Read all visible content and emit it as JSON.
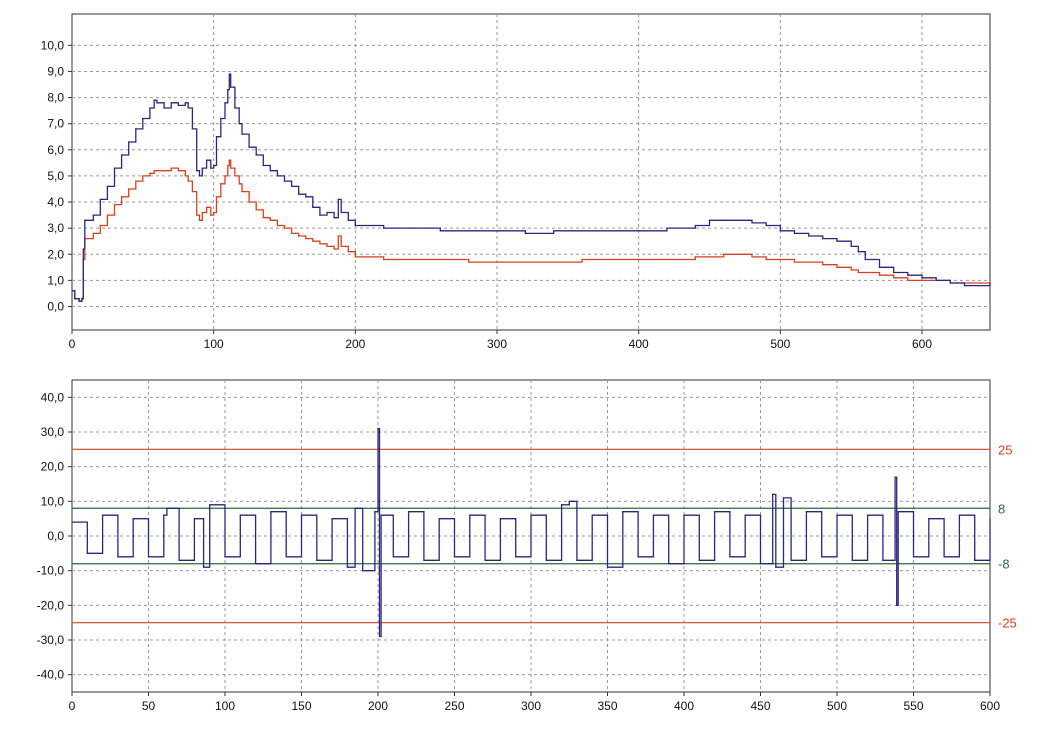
{
  "chart_data": [
    {
      "type": "line",
      "title": "",
      "xlabel": "",
      "ylabel": "",
      "xlim": [
        0,
        648
      ],
      "ylim": [
        -0.9,
        11.2
      ],
      "grid": true,
      "x_ticks": [
        0,
        100,
        200,
        300,
        400,
        500,
        600
      ],
      "x_tick_labels": [
        "0",
        "100",
        "200",
        "300",
        "400",
        "500",
        "600"
      ],
      "y_ticks": [
        0,
        1,
        2,
        3,
        4,
        5,
        6,
        7,
        8,
        9,
        10
      ],
      "y_tick_labels": [
        "0,0",
        "1,0",
        "2,0",
        "3,0",
        "4,0",
        "5,0",
        "6,0",
        "7,0",
        "8,0",
        "9,0",
        "10,0"
      ],
      "colors": {
        "series_1": "#2b2680",
        "series_2": "#d9411e",
        "grid": "#9a9a9a"
      },
      "series": [
        {
          "x": [
            0,
            2,
            5,
            7,
            8,
            9,
            10,
            15,
            20,
            25,
            30,
            35,
            40,
            45,
            50,
            55,
            58,
            60,
            65,
            70,
            75,
            80,
            82,
            85,
            88,
            90,
            92,
            95,
            98,
            100,
            102,
            105,
            108,
            110,
            111,
            112,
            115,
            118,
            120,
            125,
            130,
            135,
            140,
            145,
            150,
            155,
            160,
            165,
            170,
            175,
            180,
            185,
            188,
            190,
            195,
            200,
            210,
            220,
            230,
            240,
            250,
            260,
            280,
            300,
            320,
            340,
            360,
            380,
            400,
            420,
            440,
            450,
            460,
            470,
            480,
            490,
            500,
            510,
            520,
            530,
            540,
            550,
            555,
            560,
            570,
            580,
            590,
            600,
            610,
            620,
            630,
            640,
            648
          ],
          "values": [
            0.6,
            0.3,
            0.2,
            0.3,
            2.2,
            3.3,
            3.3,
            3.5,
            4.1,
            4.6,
            5.3,
            5.8,
            6.3,
            6.8,
            7.2,
            7.6,
            7.9,
            7.8,
            7.6,
            7.8,
            7.7,
            7.8,
            7.6,
            6.8,
            5.2,
            5.0,
            5.3,
            5.6,
            5.3,
            5.4,
            6.5,
            7.2,
            7.8,
            8.3,
            8.9,
            8.4,
            7.6,
            7.0,
            6.6,
            6.1,
            5.8,
            5.4,
            5.2,
            5.0,
            4.8,
            4.6,
            4.3,
            4.2,
            3.8,
            3.5,
            3.6,
            3.4,
            4.1,
            3.6,
            3.3,
            3.1,
            3.1,
            3.0,
            3.0,
            3.0,
            3.0,
            2.9,
            2.9,
            2.9,
            2.8,
            2.9,
            2.9,
            2.9,
            2.9,
            3.0,
            3.1,
            3.3,
            3.3,
            3.3,
            3.2,
            3.1,
            2.9,
            2.8,
            2.7,
            2.6,
            2.5,
            2.3,
            2.1,
            1.8,
            1.5,
            1.3,
            1.2,
            1.1,
            1.0,
            0.9,
            0.8,
            0.8,
            0.9
          ]
        },
        {
          "x": [
            0,
            2,
            5,
            7,
            8,
            9,
            10,
            15,
            20,
            25,
            30,
            35,
            40,
            45,
            50,
            55,
            58,
            60,
            65,
            70,
            75,
            80,
            82,
            85,
            88,
            90,
            92,
            95,
            98,
            100,
            102,
            105,
            108,
            110,
            111,
            112,
            115,
            118,
            120,
            125,
            130,
            135,
            140,
            145,
            150,
            155,
            160,
            165,
            170,
            175,
            180,
            185,
            188,
            190,
            195,
            200,
            210,
            220,
            230,
            240,
            250,
            260,
            280,
            300,
            320,
            340,
            360,
            380,
            400,
            420,
            440,
            450,
            460,
            470,
            480,
            490,
            500,
            510,
            520,
            530,
            540,
            550,
            555,
            560,
            570,
            580,
            590,
            600,
            610,
            620,
            630,
            640,
            648
          ],
          "values": [
            0.6,
            0.3,
            0.2,
            0.3,
            1.8,
            2.6,
            2.6,
            2.8,
            3.1,
            3.5,
            3.9,
            4.2,
            4.5,
            4.8,
            5.0,
            5.1,
            5.2,
            5.2,
            5.2,
            5.3,
            5.2,
            5.0,
            4.8,
            4.4,
            3.5,
            3.3,
            3.6,
            3.8,
            3.5,
            3.6,
            4.2,
            4.7,
            5.0,
            5.4,
            5.6,
            5.3,
            5.0,
            4.7,
            4.4,
            4.0,
            3.7,
            3.4,
            3.3,
            3.1,
            3.0,
            2.8,
            2.7,
            2.6,
            2.5,
            2.4,
            2.3,
            2.2,
            2.7,
            2.3,
            2.1,
            1.9,
            1.9,
            1.8,
            1.8,
            1.8,
            1.8,
            1.8,
            1.7,
            1.7,
            1.7,
            1.7,
            1.8,
            1.8,
            1.8,
            1.8,
            1.9,
            1.9,
            2.0,
            2.0,
            1.9,
            1.8,
            1.8,
            1.7,
            1.7,
            1.6,
            1.5,
            1.4,
            1.3,
            1.3,
            1.2,
            1.1,
            1.0,
            1.0,
            1.0,
            0.9,
            0.9,
            0.9,
            0.9
          ]
        }
      ]
    },
    {
      "type": "line",
      "title": "",
      "xlabel": "",
      "ylabel": "",
      "xlim": [
        0,
        600
      ],
      "ylim": [
        -45,
        45
      ],
      "grid": true,
      "x_ticks": [
        0,
        50,
        100,
        150,
        200,
        250,
        300,
        350,
        400,
        450,
        500,
        550,
        600
      ],
      "x_tick_labels": [
        "0",
        "50",
        "100",
        "150",
        "200",
        "250",
        "300",
        "350",
        "400",
        "450",
        "500",
        "550",
        "600"
      ],
      "y_ticks": [
        40,
        30,
        20,
        10,
        0,
        -10,
        -20,
        -30,
        -40
      ],
      "y_tick_labels": [
        "40,0",
        "30,0",
        "20,0",
        "10,0",
        "0,0",
        "-10,0",
        "-20,0",
        "-30,0",
        "-40,0"
      ],
      "colors": {
        "series_1": "#2b2680",
        "limit_outer": "#d9411e",
        "limit_inner": "#2a6a3a",
        "grid": "#9a9a9a"
      },
      "reference_lines": [
        {
          "y": 25,
          "label": "25",
          "color": "#d9411e"
        },
        {
          "y": 8,
          "label": "8",
          "color": "#2a6a3a"
        },
        {
          "y": -8,
          "label": "-8",
          "color": "#2a6a3a"
        },
        {
          "y": -25,
          "label": "-25",
          "color": "#d9411e"
        }
      ],
      "series": [
        {
          "x": [
            0,
            10,
            20,
            30,
            40,
            50,
            60,
            62,
            70,
            80,
            86,
            90,
            100,
            110,
            120,
            130,
            140,
            150,
            160,
            170,
            180,
            185,
            190,
            198,
            200,
            201,
            202,
            210,
            220,
            230,
            240,
            250,
            260,
            270,
            280,
            290,
            300,
            310,
            320,
            325,
            330,
            340,
            350,
            360,
            370,
            380,
            390,
            400,
            410,
            420,
            430,
            440,
            450,
            458,
            460,
            465,
            470,
            480,
            490,
            500,
            510,
            520,
            530,
            538,
            539,
            540,
            550,
            560,
            570,
            580,
            590,
            600
          ],
          "values": [
            4,
            -5,
            6,
            -6,
            5,
            -6,
            6,
            8,
            -7,
            5,
            -9,
            9,
            -6,
            6,
            -8,
            7,
            -6,
            6,
            -7,
            5,
            -9,
            8,
            -10,
            7,
            31,
            -29,
            6,
            -6,
            7,
            -7,
            5,
            -6,
            6,
            -7,
            5,
            -6,
            6,
            -7,
            9,
            10,
            -7,
            6,
            -9,
            7,
            -6,
            6,
            -8,
            6,
            -7,
            7,
            -6,
            6,
            -8,
            12,
            -9,
            11,
            -7,
            7,
            -6,
            6,
            -7,
            6,
            -7,
            17,
            -20,
            7,
            -6,
            5,
            -6,
            6,
            -7,
            5
          ]
        }
      ]
    }
  ]
}
